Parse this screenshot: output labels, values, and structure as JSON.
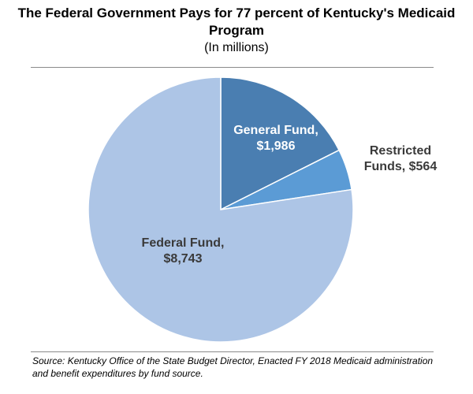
{
  "chart_data": {
    "type": "pie",
    "title": "The Federal Government Pays for 77 percent of Kentucky's Medicaid Program",
    "subtitle": "(In millions)",
    "slices": [
      {
        "label_lines": [
          "General Fund,",
          "$1,986"
        ],
        "value": 1986,
        "color": "#4a7eb1"
      },
      {
        "label_lines": [
          "Restricted",
          "Funds, $564"
        ],
        "value": 564,
        "color": "#5b9bd5"
      },
      {
        "label_lines": [
          "Federal Fund,",
          "$8,743"
        ],
        "value": 8743,
        "color": "#adc5e6"
      }
    ],
    "label_colors": [
      "#ffffff",
      "#3a3a3a",
      "#3a3a3a"
    ],
    "legend": "none",
    "source_note": "Source: Kentucky Office of the State Budget Director, Enacted FY 2018 Medicaid administration and benefit expenditures by fund source."
  }
}
